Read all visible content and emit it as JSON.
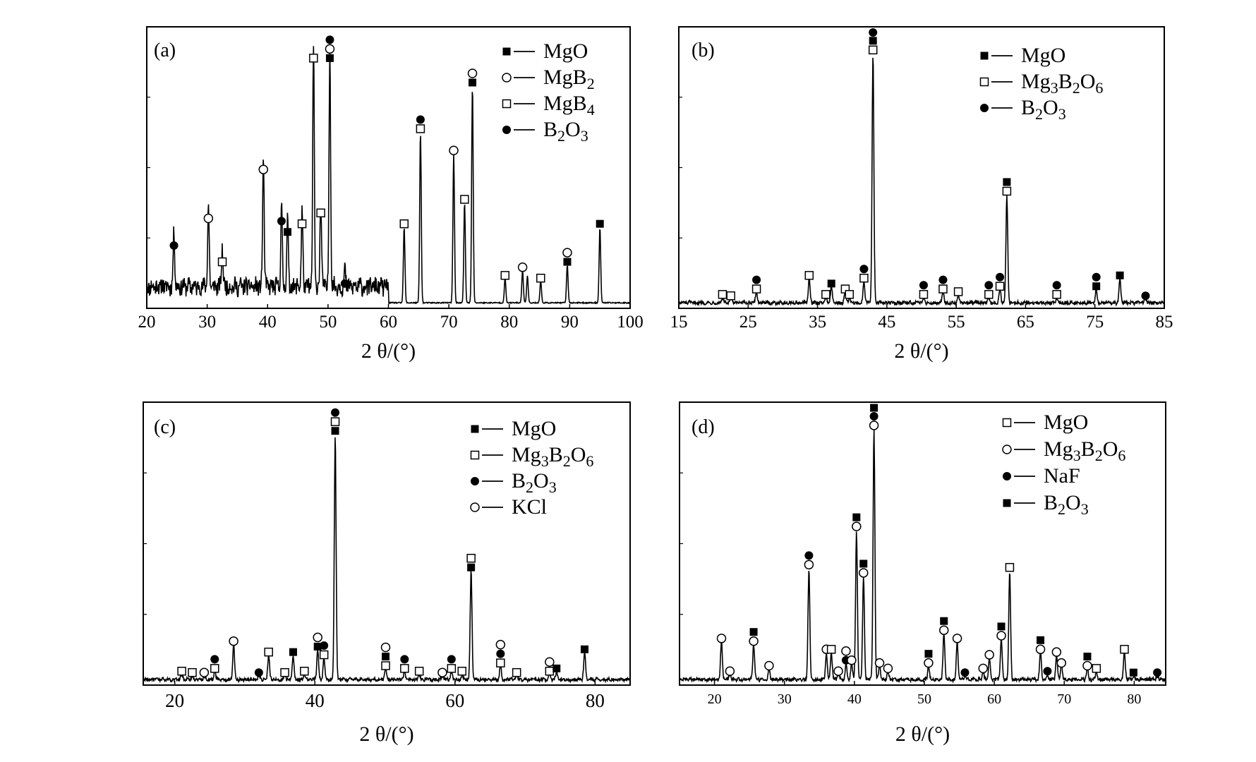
{
  "chart_data": [
    {
      "panel": "(a)",
      "type": "line",
      "xlabel": "2 θ/(°)",
      "xlim": [
        20,
        100
      ],
      "xticks": [
        20,
        30,
        40,
        50,
        60,
        70,
        80,
        90,
        100
      ],
      "ylim": [
        0,
        100
      ],
      "legend": [
        {
          "marker": "filled-square",
          "label": "MgO"
        },
        {
          "marker": "open-circle",
          "label": "MgB₂"
        },
        {
          "marker": "open-square",
          "label": "MgB₄"
        },
        {
          "marker": "filled-circle",
          "label": "B₂O₃"
        }
      ],
      "noise": {
        "from": 20,
        "to": 60,
        "base": 7,
        "amp": 3
      },
      "peaks": [
        {
          "x": 24.5,
          "y": 20,
          "markers": [
            "filled-circle"
          ]
        },
        {
          "x": 30.2,
          "y": 30,
          "markers": [
            "open-circle"
          ]
        },
        {
          "x": 32.5,
          "y": 14,
          "markers": [
            "open-square"
          ]
        },
        {
          "x": 39.3,
          "y": 48,
          "markers": [
            "open-circle"
          ]
        },
        {
          "x": 42.3,
          "y": 29,
          "markers": [
            "filled-circle"
          ]
        },
        {
          "x": 43.3,
          "y": 25,
          "markers": [
            "filled-square"
          ]
        },
        {
          "x": 45.7,
          "y": 28,
          "markers": [
            "open-square"
          ]
        },
        {
          "x": 47.6,
          "y": 89,
          "markers": [
            "open-square"
          ]
        },
        {
          "x": 48.8,
          "y": 32,
          "markers": [
            "open-square"
          ]
        },
        {
          "x": 50.3,
          "y": 89,
          "markers": [
            "filled-square",
            "open-circle",
            "filled-circle"
          ]
        },
        {
          "x": 52.8,
          "y": 6,
          "markers": [
            "filled-circle"
          ]
        },
        {
          "x": 62.6,
          "y": 28,
          "markers": [
            "open-square"
          ]
        },
        {
          "x": 65.3,
          "y": 63,
          "markers": [
            "open-square",
            "filled-circle"
          ]
        },
        {
          "x": 70.8,
          "y": 55,
          "markers": [
            "open-circle"
          ]
        },
        {
          "x": 72.6,
          "y": 37,
          "markers": [
            "open-square"
          ]
        },
        {
          "x": 73.9,
          "y": 80,
          "markers": [
            "filled-square",
            "open-circle"
          ]
        },
        {
          "x": 79.3,
          "y": 9,
          "markers": [
            "open-square"
          ]
        },
        {
          "x": 82.2,
          "y": 12,
          "markers": [
            "open-circle"
          ]
        },
        {
          "x": 83.0,
          "y": 10,
          "markers": []
        },
        {
          "x": 85.2,
          "y": 8,
          "markers": [
            "open-square"
          ]
        },
        {
          "x": 89.6,
          "y": 14,
          "markers": [
            "filled-square",
            "open-circle"
          ]
        },
        {
          "x": 95.0,
          "y": 28,
          "markers": [
            "filled-square"
          ]
        }
      ]
    },
    {
      "panel": "(b)",
      "type": "line",
      "xlabel": "2 θ/(°)",
      "xlim": [
        15,
        85
      ],
      "xticks": [
        15,
        25,
        35,
        45,
        55,
        65,
        75,
        85
      ],
      "ylim": [
        0,
        100
      ],
      "legend": [
        {
          "marker": "filled-square",
          "label": "MgO"
        },
        {
          "marker": "open-square",
          "label": "Mg₃B₂O₆"
        },
        {
          "marker": "filled-circle",
          "label": "B₂O₃"
        }
      ],
      "noise": {
        "from": 15,
        "to": 85,
        "base": 1,
        "amp": 0.6
      },
      "peaks": [
        {
          "x": 21.3,
          "y": 2,
          "markers": [
            "open-square"
          ]
        },
        {
          "x": 22.5,
          "y": 1.5,
          "markers": [
            "open-square"
          ]
        },
        {
          "x": 26.2,
          "y": 4,
          "markers": [
            "open-square",
            "filled-circle"
          ]
        },
        {
          "x": 33.8,
          "y": 9,
          "markers": [
            "open-square"
          ]
        },
        {
          "x": 36.2,
          "y": 2,
          "markers": [
            "open-square"
          ]
        },
        {
          "x": 37.0,
          "y": 6,
          "markers": [
            "filled-square"
          ]
        },
        {
          "x": 39.0,
          "y": 4,
          "markers": [
            "open-square"
          ]
        },
        {
          "x": 39.6,
          "y": 2,
          "markers": [
            "open-square"
          ]
        },
        {
          "x": 41.7,
          "y": 8,
          "markers": [
            "open-square",
            "filled-circle"
          ]
        },
        {
          "x": 43.0,
          "y": 92,
          "markers": [
            "open-square",
            "filled-square",
            "filled-circle"
          ]
        },
        {
          "x": 50.3,
          "y": 2,
          "markers": [
            "open-square",
            "filled-circle"
          ]
        },
        {
          "x": 53.1,
          "y": 4,
          "markers": [
            "open-square",
            "filled-circle"
          ]
        },
        {
          "x": 55.3,
          "y": 3,
          "markers": [
            "open-square"
          ]
        },
        {
          "x": 59.7,
          "y": 2,
          "markers": [
            "open-square",
            "filled-circle"
          ]
        },
        {
          "x": 61.3,
          "y": 5,
          "markers": [
            "open-square",
            "filled-circle"
          ]
        },
        {
          "x": 62.3,
          "y": 40,
          "markers": [
            "open-square",
            "filled-square"
          ]
        },
        {
          "x": 69.5,
          "y": 2,
          "markers": [
            "open-square",
            "filled-circle"
          ]
        },
        {
          "x": 75.2,
          "y": 5,
          "markers": [
            "filled-square",
            "filled-circle"
          ]
        },
        {
          "x": 78.6,
          "y": 9,
          "markers": [
            "filled-square"
          ]
        },
        {
          "x": 82.3,
          "y": 1.5,
          "markers": [
            "filled-circle"
          ]
        }
      ]
    },
    {
      "panel": "(c)",
      "type": "line",
      "xlabel": "2 θ/(°)",
      "xlim": [
        15.5,
        85
      ],
      "xticks": [
        20,
        40,
        60,
        80
      ],
      "ylim": [
        0,
        100
      ],
      "legend": [
        {
          "marker": "filled-square",
          "label": "MgO"
        },
        {
          "marker": "open-square",
          "label": "Mg₃B₂O₆"
        },
        {
          "marker": "filled-circle",
          "label": "B₂O₃"
        },
        {
          "marker": "open-circle",
          "label": "KCl"
        }
      ],
      "noise": {
        "from": 15.5,
        "to": 85,
        "base": 1,
        "amp": 0.6
      },
      "peaks": [
        {
          "x": 21.0,
          "y": 2,
          "markers": [
            "open-square"
          ]
        },
        {
          "x": 22.5,
          "y": 1.5,
          "markers": [
            "open-square"
          ]
        },
        {
          "x": 24.2,
          "y": 1.5,
          "markers": [
            "open-circle"
          ]
        },
        {
          "x": 25.7,
          "y": 3,
          "markers": [
            "open-square",
            "filled-circle"
          ]
        },
        {
          "x": 28.4,
          "y": 13,
          "markers": [
            "open-circle"
          ]
        },
        {
          "x": 32.0,
          "y": 1.5,
          "markers": [
            "filled-circle"
          ]
        },
        {
          "x": 33.4,
          "y": 9,
          "markers": [
            "open-square"
          ]
        },
        {
          "x": 35.7,
          "y": 1.5,
          "markers": [
            "open-square"
          ]
        },
        {
          "x": 36.9,
          "y": 9,
          "markers": [
            "filled-square"
          ]
        },
        {
          "x": 38.5,
          "y": 2,
          "markers": [
            "open-square"
          ]
        },
        {
          "x": 40.4,
          "y": 11,
          "markers": [
            "filled-square",
            "open-circle"
          ]
        },
        {
          "x": 41.3,
          "y": 8,
          "markers": [
            "open-square",
            "filled-circle"
          ]
        },
        {
          "x": 42.9,
          "y": 90,
          "markers": [
            "filled-square",
            "open-square",
            "filled-circle"
          ]
        },
        {
          "x": 50.1,
          "y": 4,
          "markers": [
            "open-square",
            "filled-square",
            "open-circle"
          ]
        },
        {
          "x": 52.8,
          "y": 3,
          "markers": [
            "open-square",
            "filled-circle"
          ]
        },
        {
          "x": 54.9,
          "y": 2,
          "markers": [
            "open-square"
          ]
        },
        {
          "x": 58.2,
          "y": 1.5,
          "markers": [
            "open-circle"
          ]
        },
        {
          "x": 59.5,
          "y": 3,
          "markers": [
            "open-square",
            "filled-circle"
          ]
        },
        {
          "x": 61.0,
          "y": 2,
          "markers": [
            "open-square"
          ]
        },
        {
          "x": 62.3,
          "y": 40,
          "markers": [
            "filled-square",
            "open-square"
          ]
        },
        {
          "x": 66.5,
          "y": 5,
          "markers": [
            "open-square",
            "filled-circle",
            "open-circle"
          ]
        },
        {
          "x": 68.8,
          "y": 1.5,
          "markers": [
            "open-square"
          ]
        },
        {
          "x": 73.5,
          "y": 2,
          "markers": [
            "open-square",
            "open-circle"
          ]
        },
        {
          "x": 74.5,
          "y": 3,
          "markers": [
            "filled-square"
          ]
        },
        {
          "x": 78.5,
          "y": 10,
          "markers": [
            "filled-square"
          ]
        }
      ]
    },
    {
      "panel": "(d)",
      "type": "line",
      "xlabel": "2 θ/(°)",
      "xlim": [
        15,
        84.5
      ],
      "xticks": [
        20,
        30,
        40,
        50,
        60,
        70,
        80
      ],
      "ylim": [
        0,
        100
      ],
      "legend": [
        {
          "marker": "open-square",
          "label": "MgO"
        },
        {
          "marker": "open-circle",
          "label": "Mg₃B₂O₆"
        },
        {
          "marker": "filled-circle",
          "label": "NaF"
        },
        {
          "marker": "filled-square",
          "label": "B₂O₃"
        }
      ],
      "noise": {
        "from": 15,
        "to": 84.5,
        "base": 1,
        "amp": 0.6
      },
      "peaks": [
        {
          "x": 21.0,
          "y": 14,
          "markers": [
            "open-circle"
          ]
        },
        {
          "x": 22.2,
          "y": 2,
          "markers": [
            "open-circle"
          ]
        },
        {
          "x": 25.6,
          "y": 13,
          "markers": [
            "open-circle",
            "filled-square"
          ]
        },
        {
          "x": 27.8,
          "y": 4,
          "markers": [
            "open-circle"
          ]
        },
        {
          "x": 33.5,
          "y": 41,
          "markers": [
            "open-circle",
            "filled-circle"
          ]
        },
        {
          "x": 36.0,
          "y": 10,
          "markers": [
            "open-circle"
          ]
        },
        {
          "x": 36.7,
          "y": 10,
          "markers": [
            "open-square"
          ]
        },
        {
          "x": 37.7,
          "y": 2,
          "markers": [
            "open-circle"
          ]
        },
        {
          "x": 38.8,
          "y": 6,
          "markers": [
            "filled-circle",
            "open-circle"
          ]
        },
        {
          "x": 39.6,
          "y": 6,
          "markers": [
            "open-circle"
          ]
        },
        {
          "x": 40.3,
          "y": 55,
          "markers": [
            "open-circle",
            "filled-square"
          ]
        },
        {
          "x": 41.3,
          "y": 38,
          "markers": [
            "open-circle",
            "filled-square"
          ]
        },
        {
          "x": 42.8,
          "y": 92,
          "markers": [
            "open-circle",
            "filled-circle",
            "filled-square"
          ]
        },
        {
          "x": 43.6,
          "y": 5,
          "markers": [
            "open-circle"
          ]
        },
        {
          "x": 44.8,
          "y": 3,
          "markers": [
            "open-circle"
          ]
        },
        {
          "x": 50.6,
          "y": 5,
          "markers": [
            "open-circle",
            "filled-square"
          ]
        },
        {
          "x": 52.8,
          "y": 17,
          "markers": [
            "open-circle",
            "filled-square"
          ]
        },
        {
          "x": 54.7,
          "y": 14,
          "markers": [
            "open-circle"
          ]
        },
        {
          "x": 55.8,
          "y": 1.5,
          "markers": [
            "filled-circle"
          ]
        },
        {
          "x": 58.4,
          "y": 3,
          "markers": [
            "open-circle"
          ]
        },
        {
          "x": 59.3,
          "y": 8,
          "markers": [
            "open-circle"
          ]
        },
        {
          "x": 61.0,
          "y": 15,
          "markers": [
            "open-circle",
            "filled-square"
          ]
        },
        {
          "x": 62.2,
          "y": 40,
          "markers": [
            "open-square"
          ]
        },
        {
          "x": 66.6,
          "y": 10,
          "markers": [
            "open-circle",
            "filled-square"
          ]
        },
        {
          "x": 67.6,
          "y": 2,
          "markers": [
            "filled-circle"
          ]
        },
        {
          "x": 68.9,
          "y": 9,
          "markers": [
            "open-circle"
          ]
        },
        {
          "x": 69.6,
          "y": 5,
          "markers": [
            "open-circle"
          ]
        },
        {
          "x": 73.3,
          "y": 4,
          "markers": [
            "open-circle",
            "filled-square"
          ]
        },
        {
          "x": 74.6,
          "y": 3,
          "markers": [
            "open-square"
          ]
        },
        {
          "x": 78.6,
          "y": 10,
          "markers": [
            "open-square"
          ]
        },
        {
          "x": 79.9,
          "y": 1.5,
          "markers": [
            "filled-square"
          ]
        },
        {
          "x": 83.3,
          "y": 1.5,
          "markers": [
            "filled-circle"
          ]
        }
      ]
    }
  ]
}
